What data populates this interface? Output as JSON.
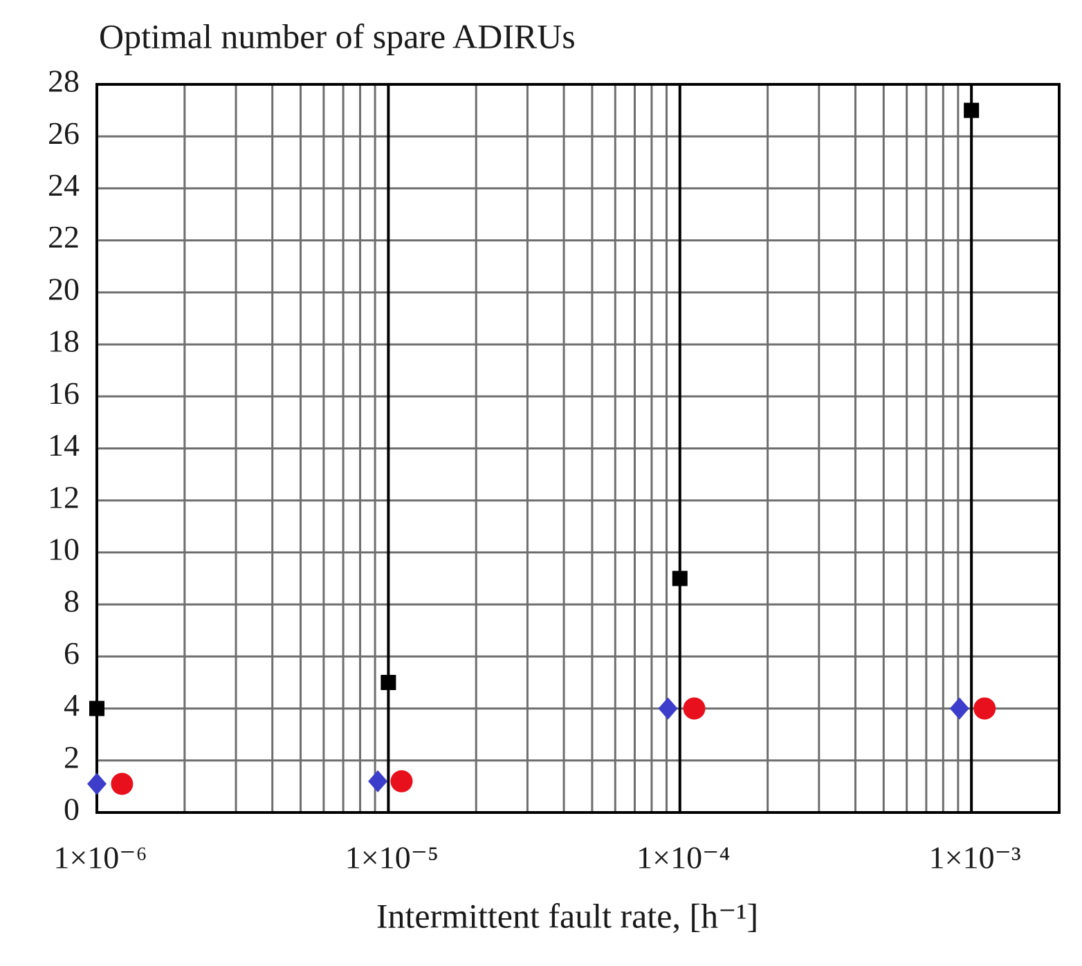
{
  "chart_data": {
    "type": "scatter",
    "title": "Optimal number of spare ADIRUs",
    "x_label": "Intermittent fault rate, [h⁻¹]",
    "log_x": true,
    "grid": true,
    "xlim": [
      1e-06,
      0.002
    ],
    "ylim": [
      0,
      28
    ],
    "xticks": [
      {
        "value": 1e-06,
        "label": "1×10⁻⁶"
      },
      {
        "value": 1e-05,
        "label": "1×10⁻⁵"
      },
      {
        "value": 0.0001,
        "label": "1×10⁻⁴"
      },
      {
        "value": 0.001,
        "label": "1×10⁻³"
      }
    ],
    "x_minor_ticks": [
      2e-06,
      3e-06,
      4e-06,
      5e-06,
      6e-06,
      7e-06,
      8e-06,
      9e-06,
      2e-05,
      3e-05,
      4e-05,
      5e-05,
      6e-05,
      7e-05,
      8e-05,
      9e-05,
      0.0002,
      0.0003,
      0.0004,
      0.0005,
      0.0006,
      0.0007,
      0.0008,
      0.0009
    ],
    "yticks": [
      0,
      2,
      4,
      6,
      8,
      10,
      12,
      14,
      16,
      18,
      20,
      22,
      24,
      26,
      28
    ],
    "series": [
      {
        "color": "#000000",
        "marker": "square",
        "x": [
          1e-06,
          1e-05,
          0.0001,
          0.001
        ],
        "values": [
          4,
          5,
          9,
          27
        ]
      },
      {
        "color": "#3d3dcc",
        "marker": "diamond",
        "x": [
          1e-06,
          9.2e-06,
          9.1e-05,
          0.00091
        ],
        "values": [
          1.1,
          1.2,
          4,
          4
        ]
      },
      {
        "color": "#e8101c",
        "marker": "circle",
        "x": [
          1.22e-06,
          1.11e-05,
          0.000112,
          0.00111
        ],
        "values": [
          1.1,
          1.2,
          4,
          4
        ]
      }
    ]
  }
}
